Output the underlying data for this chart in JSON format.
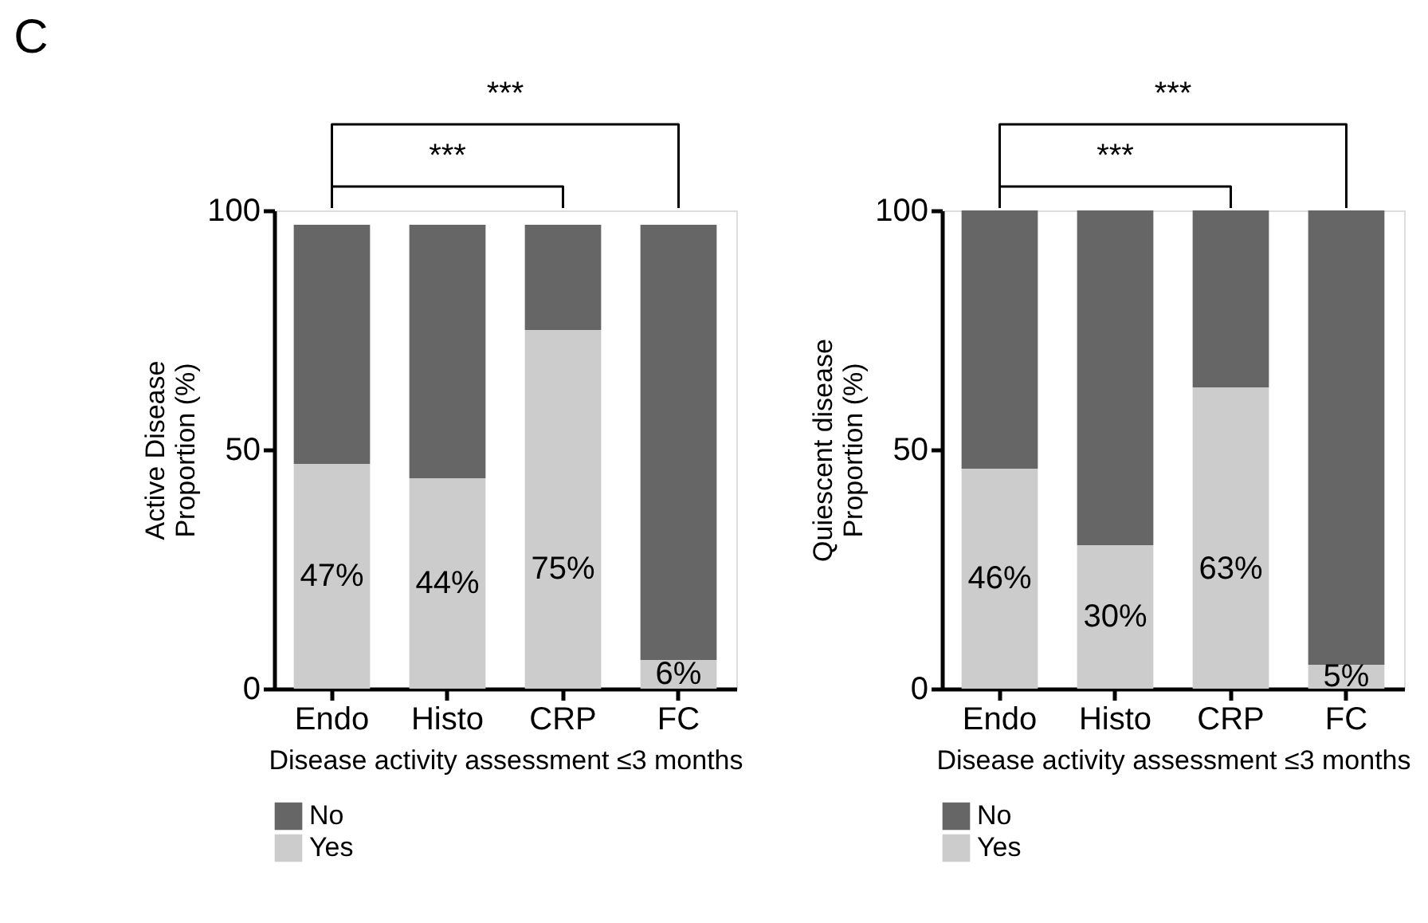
{
  "chart_data": [
    {
      "type": "bar",
      "title": "C",
      "categories": [
        "Endo",
        "Histo",
        "CRP",
        "FC"
      ],
      "xlabel": "Disease activity assessment ≤3 months",
      "ylabel": "Active Disease\nProportion (%)",
      "stacked": true,
      "ylim": [
        0,
        100
      ],
      "yticks": [
        0,
        50,
        100
      ],
      "grid": false,
      "legend": "bottom",
      "series": [
        {
          "name": "Yes",
          "color": "#cccccc",
          "values": [
            47,
            44,
            75,
            6
          ],
          "value_labels": [
            "47%",
            "44%",
            "75%",
            "6%"
          ]
        },
        {
          "name": "No",
          "color": "#666666",
          "values": [
            50,
            53,
            22,
            91
          ]
        }
      ],
      "annotations": [
        "***",
        "***"
      ]
    },
    {
      "type": "bar",
      "categories": [
        "Endo",
        "Histo",
        "CRP",
        "FC"
      ],
      "xlabel": "Disease activity assessment ≤3 months",
      "ylabel": "Quiescent disease\nProportion (%)",
      "stacked": true,
      "ylim": [
        0,
        100
      ],
      "yticks": [
        0,
        50,
        100
      ],
      "grid": false,
      "legend": "bottom",
      "series": [
        {
          "name": "Yes",
          "color": "#cccccc",
          "values": [
            46,
            30,
            63,
            5
          ],
          "value_labels": [
            "46%",
            "30%",
            "63%",
            "5%"
          ]
        },
        {
          "name": "No",
          "color": "#666666",
          "values": [
            54,
            70,
            37,
            95
          ]
        }
      ],
      "annotations": [
        "***",
        "***"
      ]
    }
  ]
}
